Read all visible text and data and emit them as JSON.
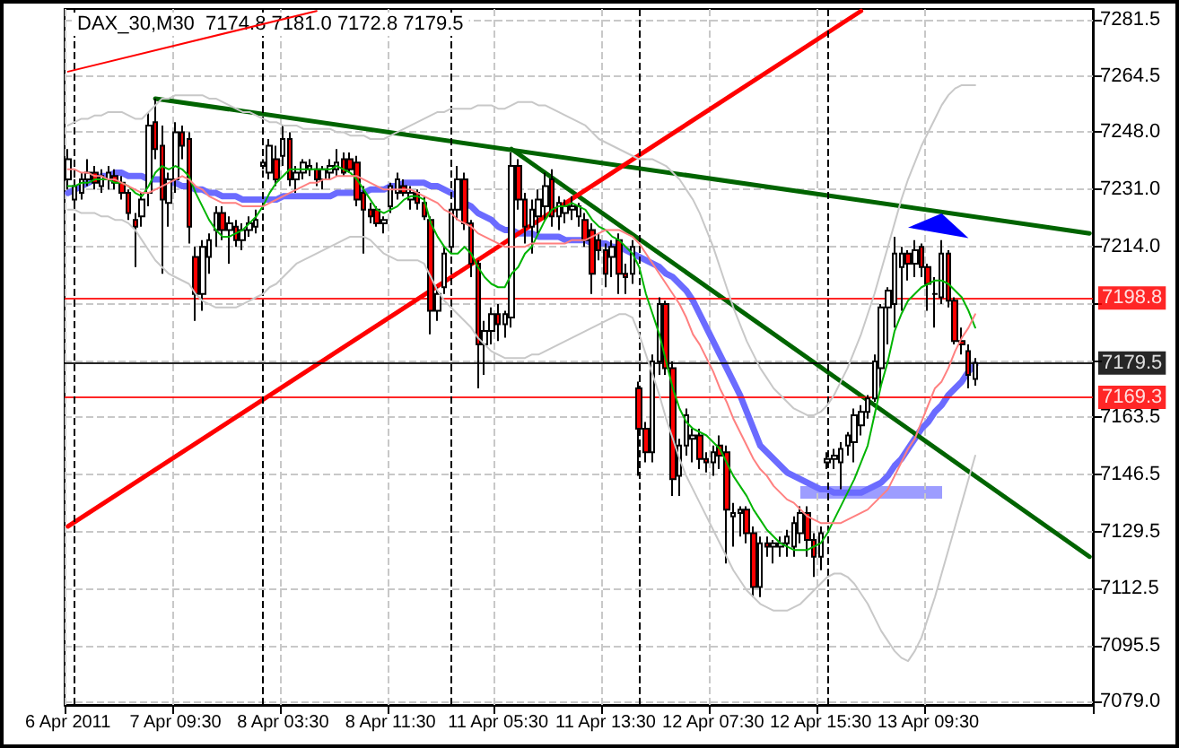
{
  "chart_data": {
    "type": "candlestick",
    "title": "DAX_30,M30  7174.8 7181.0 7172.8 7179.5",
    "categories": [
      "6 Apr 2011",
      null,
      null,
      null,
      null,
      null,
      null,
      null,
      null,
      null,
      null,
      null,
      null,
      null,
      null,
      null,
      "7 Apr 09:30",
      null,
      null,
      null,
      null,
      null,
      null,
      null,
      null,
      null,
      null,
      null,
      null,
      null,
      null,
      null,
      "8 Apr 03:30",
      null,
      null,
      null,
      null,
      null,
      null,
      null,
      null,
      null,
      null,
      null,
      null,
      null,
      null,
      null,
      "8 Apr 11:30",
      null,
      null,
      null,
      null,
      null,
      null,
      null,
      null,
      null,
      null,
      null,
      null,
      null,
      null,
      null,
      "11 Apr 05:30",
      null,
      null,
      null,
      null,
      null,
      null,
      null,
      null,
      null,
      null,
      null,
      null,
      null,
      null,
      null,
      "11 Apr 13:30",
      null,
      null,
      null,
      null,
      null,
      null,
      null,
      null,
      null,
      null,
      null,
      null,
      null,
      null,
      null,
      "12 Apr 07:30",
      null,
      null,
      null,
      null,
      null,
      null,
      null,
      null,
      null,
      null,
      null,
      null,
      null,
      null,
      null,
      "12 Apr 15:30",
      null,
      null,
      null,
      null,
      null,
      null,
      null,
      null,
      null,
      null,
      null,
      null,
      null,
      null,
      null,
      "13 Apr 09:30",
      null,
      null,
      null,
      null,
      null,
      null,
      null,
      null,
      null,
      null,
      null,
      null,
      null,
      null,
      null,
      null,
      null,
      null,
      null,
      null,
      null,
      null,
      null,
      null
    ],
    "ohlc": [
      [
        7234,
        7243,
        7231,
        7240
      ],
      [
        7228,
        7234,
        7226,
        7232
      ],
      [
        7230,
        7236,
        7228,
        7234
      ],
      [
        7234,
        7240,
        7232,
        7236
      ],
      [
        7236,
        7238,
        7231,
        7233
      ],
      [
        7232,
        7237,
        7230,
        7235
      ],
      [
        7234,
        7238,
        7231,
        7236
      ],
      [
        7235,
        7237,
        7231,
        7233
      ],
      [
        7233,
        7235,
        7228,
        7230
      ],
      [
        7230,
        7231,
        7222,
        7224
      ],
      [
        7222,
        7224,
        7208,
        7220
      ],
      [
        7223,
        7230,
        7220,
        7228
      ],
      [
        7230,
        7254,
        7226,
        7250
      ],
      [
        7251,
        7258,
        7240,
        7243
      ],
      [
        7244,
        7250,
        7206,
        7228
      ],
      [
        7227,
        7236,
        7220,
        7234
      ],
      [
        7234,
        7251,
        7230,
        7248
      ],
      [
        7248,
        7250,
        7240,
        7244
      ],
      [
        7246,
        7248,
        7215,
        7220
      ],
      [
        7211,
        7214,
        7192,
        7200
      ],
      [
        7200,
        7216,
        7195,
        7214
      ],
      [
        7211,
        7218,
        7206,
        7216
      ],
      [
        7219,
        7226,
        7214,
        7224
      ],
      [
        7224,
        7226,
        7216,
        7219
      ],
      [
        7219,
        7223,
        7209,
        7221
      ],
      [
        7220,
        7222,
        7214,
        7216
      ],
      [
        7216,
        7221,
        7213,
        7219
      ],
      [
        7219,
        7223,
        7217,
        7221
      ],
      [
        7220,
        7225,
        7218,
        7222
      ],
      [
        7238,
        7240,
        7237,
        7239
      ],
      [
        7236,
        7246,
        7234,
        7244
      ],
      [
        7240,
        7244,
        7232,
        7234
      ],
      [
        7241,
        7250,
        7238,
        7246
      ],
      [
        7246,
        7248,
        7232,
        7234
      ],
      [
        7234,
        7238,
        7230,
        7236
      ],
      [
        7236,
        7240,
        7234,
        7239
      ],
      [
        7237,
        7240,
        7235,
        7238
      ],
      [
        7237,
        7239,
        7232,
        7234
      ],
      [
        7234,
        7238,
        7231,
        7237
      ],
      [
        7236,
        7240,
        7234,
        7238
      ],
      [
        7237,
        7243,
        7235,
        7239
      ],
      [
        7240,
        7242,
        7235,
        7236
      ],
      [
        7240,
        7242,
        7236,
        7237
      ],
      [
        7239,
        7241,
        7226,
        7228
      ],
      [
        7230,
        7232,
        7212,
        7225
      ],
      [
        7225,
        7227,
        7221,
        7223
      ],
      [
        7225,
        7226,
        7220,
        7221
      ],
      [
        7221,
        7223,
        7218,
        7222
      ],
      [
        7226,
        7233,
        7224,
        7232
      ],
      [
        7230,
        7236,
        7228,
        7234
      ],
      [
        7232,
        7234,
        7229,
        7230
      ],
      [
        7228,
        7232,
        7225,
        7230
      ],
      [
        7230,
        7231,
        7225,
        7227
      ],
      [
        7227,
        7229,
        7222,
        7223
      ],
      [
        7222,
        7223,
        7188,
        7195
      ],
      [
        7195,
        7202,
        7192,
        7200
      ],
      [
        7202,
        7214,
        7200,
        7212
      ],
      [
        7214,
        7227,
        7212,
        7225
      ],
      [
        7225,
        7238,
        7222,
        7234
      ],
      [
        7234,
        7236,
        7219,
        7221
      ],
      [
        7221,
        7222,
        7205,
        7209
      ],
      [
        7209,
        7210,
        7172,
        7185
      ],
      [
        7185,
        7192,
        7176,
        7189
      ],
      [
        7189,
        7196,
        7185,
        7194
      ],
      [
        7194,
        7197,
        7186,
        7191
      ],
      [
        7191,
        7195,
        7187,
        7194
      ],
      [
        7193,
        7242,
        7190,
        7238
      ],
      [
        7238,
        7240,
        7225,
        7228
      ],
      [
        7228,
        7230,
        7215,
        7220
      ],
      [
        7220,
        7228,
        7212,
        7225
      ],
      [
        7223,
        7231,
        7218,
        7228
      ],
      [
        7226,
        7236,
        7222,
        7232
      ],
      [
        7234,
        7237,
        7220,
        7223
      ],
      [
        7223,
        7229,
        7219,
        7227
      ],
      [
        7224,
        7228,
        7221,
        7226
      ],
      [
        7225,
        7229,
        7222,
        7226
      ],
      [
        7223,
        7227,
        7220,
        7226
      ],
      [
        7222,
        7224,
        7214,
        7216
      ],
      [
        7219,
        7221,
        7200,
        7206
      ],
      [
        7216,
        7218,
        7210,
        7213
      ],
      [
        7213,
        7215,
        7202,
        7206
      ],
      [
        7211,
        7216,
        7205,
        7214
      ],
      [
        7216,
        7218,
        7200,
        7206
      ],
      [
        7206,
        7209,
        7200,
        7205
      ],
      [
        7206,
        7216,
        7203,
        7214
      ],
      [
        7172,
        7174,
        7146,
        7160
      ],
      [
        7160,
        7162,
        7150,
        7153
      ],
      [
        7153,
        7182,
        7150,
        7180
      ],
      [
        7180,
        7199,
        7176,
        7197
      ],
      [
        7197,
        7198,
        7176,
        7178
      ],
      [
        7178,
        7180,
        7140,
        7145
      ],
      [
        7146,
        7157,
        7140,
        7155
      ],
      [
        7155,
        7166,
        7152,
        7164
      ],
      [
        7157,
        7160,
        7150,
        7158
      ],
      [
        7158,
        7160,
        7148,
        7151
      ],
      [
        7151,
        7153,
        7147,
        7150
      ],
      [
        7150,
        7155,
        7146,
        7153
      ],
      [
        7155,
        7158,
        7148,
        7152
      ],
      [
        7153,
        7155,
        7120,
        7136
      ],
      [
        7134,
        7138,
        7125,
        7135
      ],
      [
        7135,
        7137,
        7128,
        7136
      ],
      [
        7136,
        7137,
        7126,
        7129
      ],
      [
        7129,
        7131,
        7110,
        7113
      ],
      [
        7113,
        7128,
        7110,
        7126
      ],
      [
        7126,
        7128,
        7122,
        7125
      ],
      [
        7125,
        7127,
        7120,
        7126
      ],
      [
        7125,
        7128,
        7122,
        7126
      ],
      [
        7126,
        7130,
        7122,
        7128
      ],
      [
        7125,
        7134,
        7122,
        7132
      ],
      [
        7129,
        7137,
        7126,
        7135
      ],
      [
        7135,
        7137,
        7122,
        7127
      ],
      [
        7127,
        7129,
        7116,
        7122
      ],
      [
        7122,
        7131,
        7118,
        7129
      ],
      [
        7150,
        7153,
        7148,
        7151
      ],
      [
        7151,
        7154,
        7148,
        7152
      ],
      [
        7150,
        7156,
        7142,
        7154
      ],
      [
        7155,
        7159,
        7152,
        7158
      ],
      [
        7156,
        7166,
        7150,
        7164
      ],
      [
        7161,
        7167,
        7158,
        7165
      ],
      [
        7165,
        7170,
        7163,
        7169
      ],
      [
        7169,
        7182,
        7168,
        7180
      ],
      [
        7178,
        7197,
        7172,
        7196
      ],
      [
        7196,
        7202,
        7185,
        7201
      ],
      [
        7197,
        7217,
        7190,
        7212
      ],
      [
        7208,
        7214,
        7195,
        7212
      ],
      [
        7212,
        7213,
        7204,
        7209
      ],
      [
        7209,
        7216,
        7205,
        7213
      ],
      [
        7214,
        7215,
        7205,
        7208
      ],
      [
        7208,
        7209,
        7195,
        7203
      ],
      [
        7200,
        7205,
        7190,
        7200
      ],
      [
        7199,
        7216,
        7197,
        7212
      ],
      [
        7212,
        7213,
        7196,
        7198
      ],
      [
        7198,
        7199,
        7185,
        7186
      ],
      [
        7186,
        7190,
        7182,
        7185
      ],
      [
        7183,
        7185,
        7172,
        7176
      ],
      [
        7174.8,
        7181.0,
        7172.8,
        7179.5
      ],
      null,
      null,
      null,
      null,
      null,
      null,
      null,
      null,
      null,
      null,
      null,
      null,
      null,
      null,
      null,
      null,
      null
    ],
    "series": [
      {
        "type": "line",
        "color": "#00b400",
        "values": [
          7232,
          7232,
          7233,
          7233,
          7234,
          7234,
          7234,
          7233,
          7233,
          7232,
          7230,
          7229,
          7232,
          7236,
          7238,
          7237,
          7238,
          7237,
          7235,
          7230,
          7226,
          7222,
          7219,
          7217,
          7217,
          7218,
          7219,
          7221,
          7223,
          7226,
          7230,
          7233,
          7235,
          7237,
          7237,
          7237,
          7237,
          7237,
          7237,
          7237,
          7238,
          7237,
          7236,
          7234,
          7231,
          7228,
          7225,
          7224,
          7225,
          7226,
          7228,
          7229,
          7229,
          7228,
          7221,
          7217,
          7214,
          7212,
          7212,
          7214,
          7212,
          7208,
          7205,
          7203,
          7202,
          7202,
          7206,
          7208,
          7212,
          7214,
          7218,
          7222,
          7225,
          7226,
          7226,
          7227,
          7226,
          7225,
          7222,
          7220,
          7219,
          7217,
          7216,
          7214,
          7212,
          7208,
          7200,
          7194,
          7188,
          7180,
          7172,
          7166,
          7162,
          7160,
          7159,
          7158,
          7156,
          7154,
          7150,
          7146,
          7143,
          7140,
          7136,
          7133,
          7130,
          7128,
          7126,
          7125,
          7124,
          7124,
          7124,
          7125,
          7126,
          7129,
          7133,
          7137,
          7141,
          7145,
          7150,
          7155,
          7164,
          7173,
          7180,
          7189,
          7194,
          7198,
          7200,
          7202,
          7203,
          7204,
          7204,
          7203,
          7201,
          7199,
          7195,
          7190,
          null,
          null,
          null,
          null,
          null,
          null,
          null,
          null,
          null,
          null,
          null,
          null,
          null,
          null,
          null,
          null,
          null
        ]
      },
      {
        "type": "line",
        "color": "#ff8080",
        "values": [
          7237,
          7237,
          7236,
          7236,
          7235,
          7235,
          7234,
          7234,
          7233,
          7232,
          7231,
          7230,
          7230,
          7231,
          7232,
          7233,
          7234,
          7235,
          7234,
          7232,
          7231,
          7229,
          7228,
          7227,
          7227,
          7227,
          7226,
          7226,
          7226,
          7226,
          7227,
          7228,
          7229,
          7230,
          7231,
          7232,
          7233,
          7233,
          7234,
          7234,
          7235,
          7235,
          7235,
          7235,
          7234,
          7233,
          7232,
          7231,
          7231,
          7231,
          7231,
          7231,
          7230,
          7229,
          7228,
          7227,
          7225,
          7224,
          7222,
          7221,
          7220,
          7218,
          7217,
          7216,
          7215,
          7214,
          7214,
          7214,
          7214,
          7215,
          7215,
          7215,
          7215,
          7215,
          7215,
          7216,
          7216,
          7216,
          7217,
          7218,
          7219,
          7219,
          7219,
          7218,
          7217,
          7215,
          7212,
          7209,
          7206,
          7203,
          7200,
          7197,
          7193,
          7188,
          7185,
          7181,
          7177,
          7172,
          7168,
          7163,
          7159,
          7155,
          7151,
          7148,
          7146,
          7143,
          7141,
          7139,
          7138,
          7136,
          7134,
          7133,
          7132,
          7132,
          7132,
          7132,
          7133,
          7134,
          7135,
          7136,
          7138,
          7140,
          7142,
          7146,
          7150,
          7154,
          7157,
          7162,
          7167,
          7172,
          7174,
          7178,
          7183,
          7187,
          7190,
          7194,
          null,
          null,
          null,
          null,
          null,
          null,
          null,
          null,
          null,
          null,
          null,
          null,
          null,
          null,
          null,
          null,
          null
        ]
      },
      {
        "type": "line",
        "color": "#6b6bff",
        "values": [
          7230,
          7231,
          7232,
          7233,
          7234,
          7235,
          7235,
          7236,
          7236,
          7235,
          7235,
          7235,
          7234,
          7234,
          7234,
          7233,
          7233,
          7232,
          7232,
          7231,
          7231,
          7230,
          7230,
          7229,
          7229,
          7229,
          7228,
          7228,
          7228,
          7228,
          7228,
          7228,
          7229,
          7229,
          7229,
          7229,
          7229,
          7229,
          7229,
          7229,
          7230,
          7230,
          7230,
          7230,
          7230,
          7231,
          7231,
          7231,
          7232,
          7232,
          7233,
          7233,
          7233,
          7233,
          7232,
          7232,
          7231,
          7230,
          7229,
          7227,
          7226,
          7224,
          7223,
          7222,
          7220,
          7219,
          7219,
          7218,
          7218,
          7218,
          7217,
          7217,
          7217,
          7217,
          7216,
          7216,
          7216,
          7216,
          7215,
          7215,
          7215,
          7214,
          7214,
          7213,
          7212,
          7211,
          7210,
          7209,
          7208,
          7206,
          7205,
          7203,
          7201,
          7198,
          7194,
          7190,
          7186,
          7182,
          7178,
          7174,
          7170,
          7165,
          7160,
          7155,
          7153,
          7151,
          7149,
          7147,
          7146,
          7145,
          7144,
          7143,
          7142,
          7142,
          7141,
          7141,
          7141,
          7141,
          7141,
          7142,
          7143,
          7144,
          7146,
          7149,
          7151,
          7154,
          7157,
          7160,
          7162,
          7165,
          7167,
          7170,
          7172,
          7174,
          7177,
          7179,
          null,
          null,
          null,
          null,
          null,
          null,
          null,
          null,
          null,
          null,
          null,
          null,
          null,
          null,
          null,
          null,
          null
        ]
      },
      {
        "type": "line",
        "color": "#c8c8c8",
        "values": [
          7250,
          7251,
          7252,
          7252,
          7253,
          7253,
          7254,
          7254,
          7254,
          7253,
          7252,
          7252,
          7254,
          7256,
          7258,
          7258,
          7259,
          7259,
          7259,
          7259,
          7259,
          7258,
          7258,
          7257,
          7256,
          7255,
          7254,
          7254,
          7253,
          7252,
          7251,
          7251,
          7250,
          7250,
          7250,
          7249,
          7249,
          7249,
          7249,
          7249,
          7248,
          7248,
          7247,
          7247,
          7247,
          7246,
          7246,
          7246,
          7247,
          7248,
          7249,
          7250,
          7251,
          7252,
          7253,
          7254,
          7254,
          7255,
          7255,
          7255,
          7255,
          7256,
          7256,
          7256,
          7255,
          7255,
          7256,
          7257,
          7257,
          7257,
          7256,
          7256,
          7255,
          7254,
          7253,
          7252,
          7251,
          7250,
          7248,
          7246,
          7245,
          7244,
          7243,
          7242,
          7241,
          7240,
          7240,
          7240,
          7239,
          7238,
          7236,
          7234,
          7231,
          7228,
          7224,
          7219,
          7214,
          7208,
          7202,
          7196,
          7191,
          7186,
          7182,
          7178,
          7175,
          7172,
          7170,
          7168,
          7166,
          7165,
          7164,
          7164,
          7165,
          7167,
          7170,
          7174,
          7178,
          7183,
          7188,
          7194,
          7200,
          7207,
          7214,
          7221,
          7228,
          7234,
          7239,
          7244,
          7248,
          7252,
          7256,
          7259,
          7261,
          7262,
          7262,
          7262,
          null,
          null,
          null,
          null,
          null,
          null,
          null,
          null,
          null,
          null,
          null,
          null,
          null,
          null,
          null,
          null,
          null
        ]
      },
      {
        "type": "line",
        "color": "#c8c8c8",
        "values": [
          7225,
          7225,
          7224,
          7224,
          7224,
          7223,
          7223,
          7222,
          7222,
          7221,
          7219,
          7216,
          7213,
          7210,
          7208,
          7206,
          7205,
          7204,
          7203,
          7200,
          7198,
          7197,
          7196,
          7196,
          7196,
          7196,
          7197,
          7198,
          7199,
          7200,
          7202,
          7203,
          7205,
          7207,
          7209,
          7210,
          7211,
          7212,
          7213,
          7214,
          7215,
          7216,
          7217,
          7217,
          7217,
          7216,
          7214,
          7212,
          7211,
          7210,
          7210,
          7210,
          7210,
          7209,
          7205,
          7201,
          7198,
          7196,
          7194,
          7192,
          7190,
          7187,
          7185,
          7183,
          7182,
          7181,
          7181,
          7181,
          7181,
          7182,
          7182,
          7183,
          7184,
          7185,
          7186,
          7187,
          7188,
          7189,
          7190,
          7191,
          7192,
          7193,
          7194,
          7194,
          7193,
          7188,
          7182,
          7176,
          7170,
          7163,
          7157,
          7151,
          7146,
          7142,
          7138,
          7134,
          7130,
          7126,
          7122,
          7118,
          7115,
          7112,
          7110,
          7108,
          7107,
          7106,
          7106,
          7106,
          7107,
          7108,
          7110,
          7112,
          7114,
          7116,
          7117,
          7117,
          7116,
          7114,
          7111,
          7108,
          7104,
          7100,
          7097,
          7094,
          7092,
          7091,
          7094,
          7098,
          7104,
          7110,
          7117,
          7124,
          7131,
          7138,
          7145,
          7152,
          null,
          null,
          null,
          null,
          null,
          null,
          null,
          null,
          null,
          null,
          null,
          null,
          null,
          null,
          null,
          null,
          null
        ]
      },
      {
        "type": "line",
        "color": "#006400",
        "values": [
          null,
          null,
          null,
          null,
          null,
          null,
          null,
          null,
          null,
          null,
          null,
          null,
          null,
          7258,
          null,
          null,
          null,
          null,
          null,
          null,
          null,
          null,
          null,
          null,
          null,
          null,
          null,
          null,
          null,
          null,
          null,
          null,
          null,
          null,
          null,
          null,
          null,
          null,
          null,
          null,
          null,
          null,
          null,
          null,
          null,
          null,
          null,
          null,
          null,
          null,
          null,
          null,
          null,
          null,
          null,
          null,
          null,
          null,
          null,
          null,
          null,
          null,
          null,
          null,
          null,
          null,
          null,
          null,
          null,
          null,
          null,
          null,
          null,
          null,
          null,
          null,
          null,
          null,
          null,
          null,
          null,
          null,
          null,
          null,
          null,
          null,
          null,
          null,
          null,
          null,
          null,
          null,
          null,
          null,
          null,
          null,
          null,
          null,
          null,
          null,
          null,
          null,
          null,
          null,
          null,
          null,
          null,
          null,
          null,
          null,
          null,
          null,
          null,
          null,
          null,
          null,
          null,
          null,
          null,
          null,
          null,
          null,
          null,
          null,
          null,
          null,
          null,
          null,
          null,
          null,
          null,
          null,
          null,
          null,
          null,
          null,
          null,
          null,
          null,
          null,
          null,
          null,
          null,
          null,
          null,
          null,
          null,
          null,
          null,
          null,
          null,
          null,
          7218
        ]
      },
      {
        "type": "line",
        "color": "#006400",
        "values": [
          null,
          null,
          null,
          null,
          null,
          null,
          null,
          null,
          null,
          null,
          null,
          null,
          null,
          null,
          null,
          null,
          null,
          null,
          null,
          null,
          null,
          null,
          null,
          null,
          null,
          null,
          null,
          null,
          null,
          null,
          null,
          null,
          null,
          null,
          null,
          null,
          null,
          null,
          null,
          null,
          null,
          null,
          null,
          null,
          null,
          null,
          null,
          null,
          null,
          null,
          null,
          null,
          null,
          null,
          null,
          null,
          null,
          null,
          null,
          null,
          null,
          null,
          null,
          null,
          null,
          null,
          7243,
          null,
          null,
          null,
          null,
          null,
          null,
          null,
          null,
          null,
          null,
          null,
          null,
          null,
          null,
          null,
          null,
          null,
          null,
          null,
          null,
          null,
          null,
          null,
          null,
          null,
          null,
          null,
          null,
          null,
          null,
          null,
          null,
          null,
          null,
          null,
          null,
          null,
          null,
          null,
          null,
          null,
          null,
          null,
          null,
          null,
          null,
          null,
          null,
          null,
          null,
          null,
          null,
          null,
          null,
          null,
          null,
          null,
          null,
          null,
          null,
          null,
          null,
          null,
          null,
          null,
          null,
          null,
          null,
          null,
          null,
          null,
          null,
          null,
          null,
          null,
          null,
          null,
          null,
          null,
          null,
          null,
          null,
          null,
          null,
          null,
          7122
        ]
      },
      {
        "type": "line",
        "color": "#ff0000",
        "values": [
          7131,
          null,
          null,
          null,
          null,
          null,
          null,
          null,
          null,
          null,
          null,
          null,
          null,
          null,
          null,
          null,
          null,
          null,
          null,
          null,
          null,
          null,
          null,
          null,
          null,
          null,
          null,
          null,
          null,
          null,
          null,
          null,
          null,
          null,
          null,
          null,
          null,
          null,
          null,
          null,
          null,
          null,
          null,
          null,
          null,
          null,
          null,
          null,
          null,
          null,
          null,
          null,
          null,
          null,
          null,
          null,
          null,
          null,
          null,
          null,
          null,
          null,
          null,
          null,
          null,
          null,
          null,
          null,
          null,
          null,
          null,
          null,
          null,
          null,
          null,
          null,
          null,
          null,
          null,
          null,
          null,
          null,
          null,
          null,
          null,
          null,
          null,
          null,
          null,
          null,
          null,
          null,
          null,
          null,
          null,
          null,
          null,
          null,
          null,
          null,
          null,
          null,
          null,
          null,
          null,
          null,
          null,
          null,
          null,
          null,
          null,
          null,
          null,
          null,
          null,
          null,
          null,
          null,
          7284,
          null,
          null,
          null,
          null,
          null,
          null,
          null,
          null,
          null,
          null,
          null,
          null,
          null,
          null,
          null,
          null,
          null,
          null,
          null,
          null,
          null,
          null,
          null,
          null,
          null,
          null,
          null,
          null,
          null,
          null,
          null,
          null,
          null,
          null
        ]
      },
      {
        "type": "line",
        "color": "#ff0000",
        "values": [
          7266,
          null,
          null,
          null,
          null,
          null,
          null,
          null,
          null,
          null,
          null,
          null,
          null,
          null,
          null,
          null,
          null,
          null,
          null,
          null,
          null,
          null,
          null,
          null,
          null,
          null,
          null,
          null,
          null,
          null,
          null,
          null,
          null,
          null,
          null,
          null,
          null,
          7284,
          null,
          null,
          null,
          null,
          null,
          null,
          null,
          null,
          null,
          null,
          null,
          null,
          null,
          null,
          null,
          null,
          null,
          null,
          null,
          null,
          null,
          null,
          null,
          null,
          null,
          null,
          null,
          null,
          null,
          null,
          null,
          null,
          null,
          null,
          null,
          null,
          null,
          null,
          null,
          null,
          null,
          null,
          null,
          null,
          null,
          null,
          null,
          null,
          null,
          null,
          null,
          null,
          null,
          null,
          null,
          null,
          null,
          null,
          null,
          null,
          null,
          null,
          null,
          null,
          null,
          null,
          null,
          null,
          null,
          null,
          null,
          null,
          null,
          null,
          null,
          null,
          null,
          null,
          null,
          null,
          null,
          null,
          null,
          null,
          null,
          null,
          null,
          null,
          null,
          null,
          null,
          null,
          null,
          null,
          null,
          null,
          null,
          null,
          null,
          null,
          null,
          null,
          null,
          null,
          null,
          null,
          null,
          null,
          null,
          null,
          null,
          null,
          null,
          null,
          null
        ]
      }
    ],
    "ylim": [
      7078,
      7284.6
    ],
    "yticks": [
      {
        "value": 7079,
        "label": "7079.0"
      },
      7095.5,
      7112.5,
      7129.5,
      7146.5,
      7163.5,
      {
        "value": 7180,
        "label": null
      },
      {
        "value": 7197,
        "label": null
      },
      {
        "value": 7214,
        "label": "7214.0"
      },
      {
        "value": 7231,
        "label": "7231.0"
      },
      {
        "value": 7248,
        "label": "7248.0"
      },
      7264.5,
      7281.5
    ],
    "grid": true,
    "ref_lines": [
      {
        "axis": "y",
        "value": 7198.8,
        "label": "7198.8",
        "color": "#ff0000"
      },
      {
        "axis": "y",
        "value": 7169.3,
        "label": "7169.3",
        "color": "#ff0000"
      },
      {
        "axis": "y",
        "value": 7179.5,
        "label": "7179.5",
        "color": "#000000"
      }
    ]
  }
}
